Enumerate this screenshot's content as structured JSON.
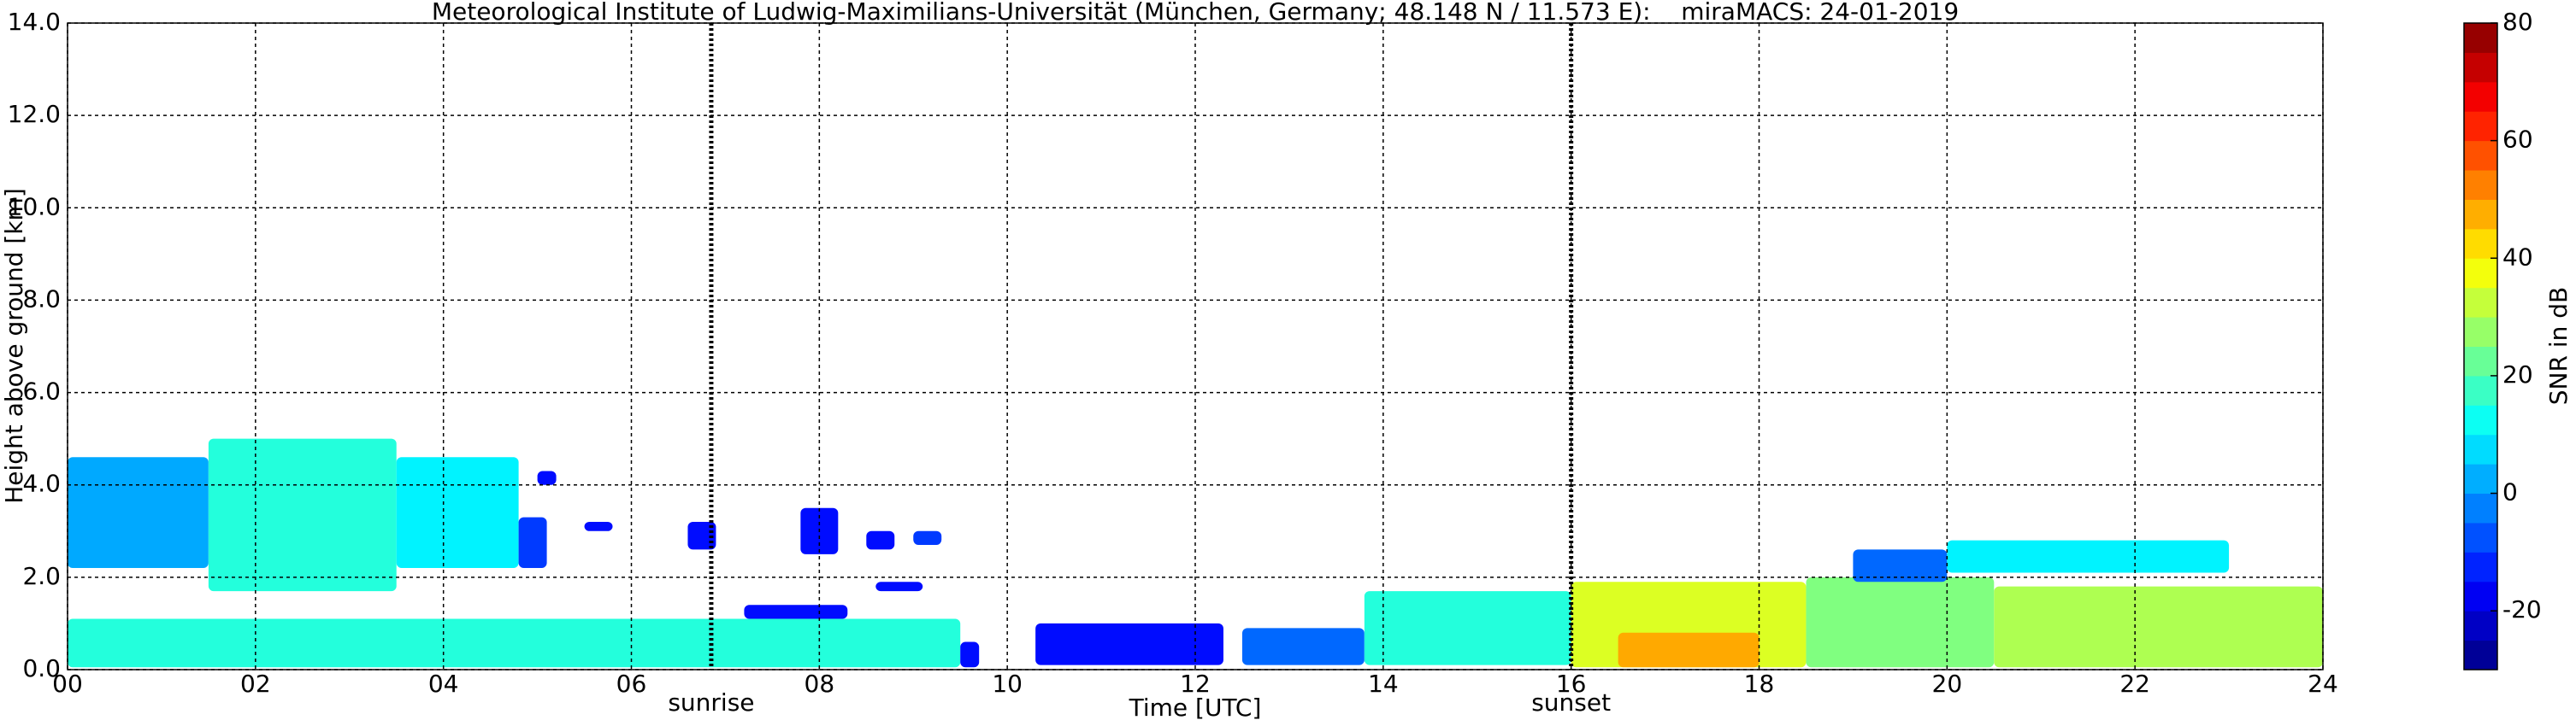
{
  "chart_data": {
    "type": "time-height",
    "title": "Meteorological Institute of Ludwig-Maximilians-Universität (München, Germany; 48.148 N / 11.573 E):    miraMACS: 24-01-2019",
    "xlabel": "Time [UTC]",
    "ylabel": "Height above ground [km]",
    "colorbar_label": "SNR in dB",
    "xlim": [
      0,
      24
    ],
    "ylim": [
      0,
      14
    ],
    "clim": [
      -30,
      80
    ],
    "grid": true,
    "colormap": "jet",
    "xticks": [
      {
        "value": 0,
        "label": "00"
      },
      {
        "value": 2,
        "label": "02"
      },
      {
        "value": 4,
        "label": "04"
      },
      {
        "value": 6,
        "label": "06"
      },
      {
        "value": 8,
        "label": "08"
      },
      {
        "value": 10,
        "label": "10"
      },
      {
        "value": 12,
        "label": "12"
      },
      {
        "value": 14,
        "label": "14"
      },
      {
        "value": 16,
        "label": "16"
      },
      {
        "value": 18,
        "label": "18"
      },
      {
        "value": 20,
        "label": "20"
      },
      {
        "value": 22,
        "label": "22"
      },
      {
        "value": 24,
        "label": "24"
      }
    ],
    "yticks": [
      {
        "value": 0,
        "label": "0.0"
      },
      {
        "value": 2,
        "label": "2.0"
      },
      {
        "value": 4,
        "label": "4.0"
      },
      {
        "value": 6,
        "label": "6.0"
      },
      {
        "value": 8,
        "label": "8.0"
      },
      {
        "value": 10,
        "label": "10.0"
      },
      {
        "value": 12,
        "label": "12.0"
      },
      {
        "value": 14,
        "label": "14.0"
      }
    ],
    "cticks": [
      -20,
      0,
      20,
      40,
      60,
      80
    ],
    "markers": [
      {
        "label": "sunrise",
        "time": 6.85
      },
      {
        "label": "sunset",
        "time": 16.0
      }
    ],
    "regions": [
      {
        "time": [
          0,
          1.5
        ],
        "height": [
          2.2,
          4.6
        ],
        "snr": 2
      },
      {
        "time": [
          1.5,
          3.5
        ],
        "height": [
          1.7,
          5.0
        ],
        "snr": 15
      },
      {
        "time": [
          3.5,
          4.8
        ],
        "height": [
          2.2,
          4.6
        ],
        "snr": 10
      },
      {
        "time": [
          4.8,
          5.1
        ],
        "height": [
          2.2,
          3.3
        ],
        "snr": -10
      },
      {
        "time": [
          0,
          9.5
        ],
        "height": [
          0.05,
          1.1
        ],
        "snr": 15
      },
      {
        "time": [
          9.5,
          9.7
        ],
        "height": [
          0.05,
          0.6
        ],
        "snr": -15
      },
      {
        "time": [
          5.0,
          5.2
        ],
        "height": [
          4.0,
          4.3
        ],
        "snr": -15
      },
      {
        "time": [
          5.5,
          5.8
        ],
        "height": [
          3.0,
          3.2
        ],
        "snr": -15
      },
      {
        "time": [
          6.6,
          6.9
        ],
        "height": [
          2.6,
          3.2
        ],
        "snr": -15
      },
      {
        "time": [
          7.8,
          8.2
        ],
        "height": [
          2.5,
          3.5
        ],
        "snr": -15
      },
      {
        "time": [
          8.5,
          8.8
        ],
        "height": [
          2.6,
          3.0
        ],
        "snr": -15
      },
      {
        "time": [
          9.0,
          9.3
        ],
        "height": [
          2.7,
          3.0
        ],
        "snr": -10
      },
      {
        "time": [
          7.2,
          8.3
        ],
        "height": [
          1.1,
          1.4
        ],
        "snr": -15
      },
      {
        "time": [
          8.6,
          9.1
        ],
        "height": [
          1.7,
          1.9
        ],
        "snr": -15
      },
      {
        "time": [
          10.3,
          12.3
        ],
        "height": [
          0.1,
          1.0
        ],
        "snr": -15
      },
      {
        "time": [
          12.5,
          13.8
        ],
        "height": [
          0.1,
          0.9
        ],
        "snr": -5
      },
      {
        "time": [
          13.8,
          16.0
        ],
        "height": [
          0.1,
          1.7
        ],
        "snr": 15
      },
      {
        "time": [
          16.0,
          18.5
        ],
        "height": [
          0.05,
          1.9
        ],
        "snr": 35
      },
      {
        "time": [
          16.5,
          18.0
        ],
        "height": [
          0.05,
          0.8
        ],
        "snr": 48
      },
      {
        "time": [
          18.5,
          20.5
        ],
        "height": [
          0.05,
          2.0
        ],
        "snr": 25
      },
      {
        "time": [
          20.5,
          24
        ],
        "height": [
          0.05,
          1.8
        ],
        "snr": 30
      },
      {
        "time": [
          19.0,
          20.0
        ],
        "height": [
          1.9,
          2.6
        ],
        "snr": -5
      },
      {
        "time": [
          20.0,
          23.0
        ],
        "height": [
          2.1,
          2.8
        ],
        "snr": 10
      }
    ]
  }
}
